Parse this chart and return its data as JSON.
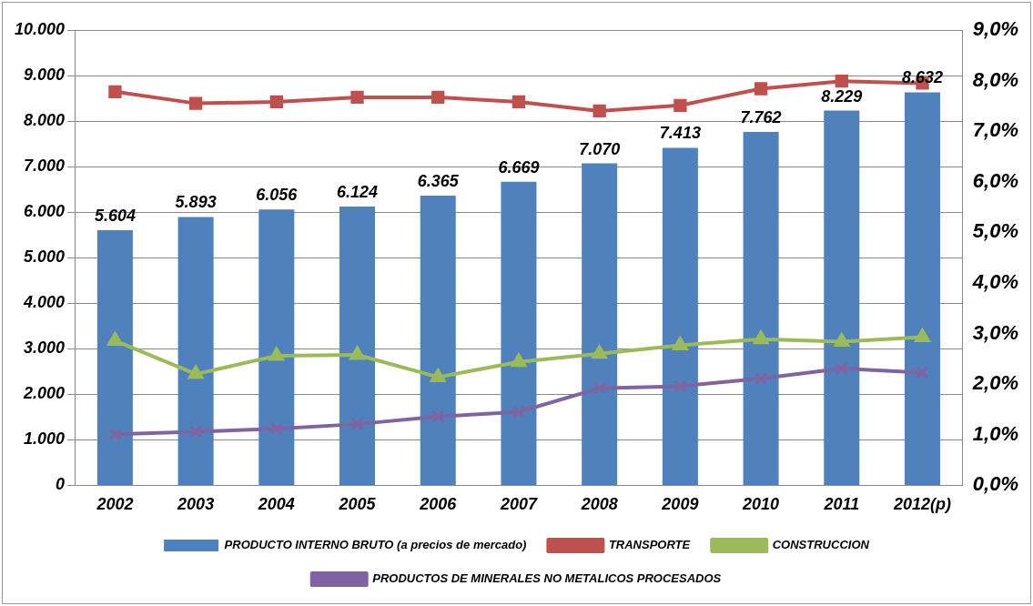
{
  "chart_data": {
    "type": "bar",
    "categories": [
      "2002",
      "2003",
      "2004",
      "2005",
      "2006",
      "2007",
      "2008",
      "2009",
      "2010",
      "2011",
      "2012(p)"
    ],
    "series": [
      {
        "name": "PRODUCTO INTERNO BRUTO (a precios de mercado)",
        "color": "#4f81bd",
        "values": [
          5604,
          5893,
          6056,
          6124,
          6365,
          6669,
          7070,
          7413,
          7762,
          8229,
          8632
        ],
        "value_labels": [
          "5.604",
          "5.893",
          "6.056",
          "6.124",
          "6.365",
          "6.669",
          "7.070",
          "7.413",
          "7.762",
          "8.229",
          "8.632"
        ]
      },
      {
        "name": "TRANSPORTE",
        "type": "line",
        "axis": "y2",
        "color": "#c0504d",
        "marker": "square",
        "values": [
          7.78,
          7.55,
          7.58,
          7.67,
          7.67,
          7.58,
          7.4,
          7.51,
          7.84,
          7.99,
          7.95
        ]
      },
      {
        "name": "CONSTRUCCION",
        "type": "line",
        "axis": "y2",
        "color": "#9bbb59",
        "marker": "triangle",
        "values": [
          2.86,
          2.2,
          2.56,
          2.58,
          2.14,
          2.44,
          2.6,
          2.77,
          2.89,
          2.84,
          2.93
        ]
      },
      {
        "name": "PRODUCTOS DE MINERALES NO METALICOS PROCESADOS",
        "type": "line",
        "axis": "y2",
        "color": "#8064a2",
        "marker": "cross",
        "values": [
          1.01,
          1.06,
          1.12,
          1.21,
          1.36,
          1.45,
          1.92,
          1.96,
          2.11,
          2.31,
          2.23
        ]
      }
    ],
    "ylim": [
      0,
      10000
    ],
    "yticks": [
      0,
      {
        "value": 1000,
        "label": "1.000"
      },
      {
        "value": 2000,
        "label": "2.000"
      },
      {
        "value": 3000,
        "label": "3.000"
      },
      {
        "value": 4000,
        "label": "4.000"
      },
      {
        "value": 5000,
        "label": "5.000"
      },
      {
        "value": 6000,
        "label": "6.000"
      },
      {
        "value": 7000,
        "label": "7.000"
      },
      {
        "value": 8000,
        "label": "8.000"
      },
      {
        "value": 9000,
        "label": "9.000"
      },
      {
        "value": 10000,
        "label": "10.000"
      }
    ],
    "y2lim": [
      0,
      9
    ],
    "y2ticks": [
      {
        "value": 0,
        "label": "0,0%"
      },
      {
        "value": 1,
        "label": "1,0%"
      },
      {
        "value": 2,
        "label": "2,0%"
      },
      {
        "value": 3,
        "label": "3,0%"
      },
      {
        "value": 4,
        "label": "4,0%"
      },
      {
        "value": 5,
        "label": "5,0%"
      },
      {
        "value": 6,
        "label": "6,0%"
      },
      {
        "value": 7,
        "label": "7,0%"
      },
      {
        "value": 8,
        "label": "8,0%"
      },
      {
        "value": 9,
        "label": "9,0%"
      }
    ],
    "grid": "y",
    "legend": "bottom"
  }
}
